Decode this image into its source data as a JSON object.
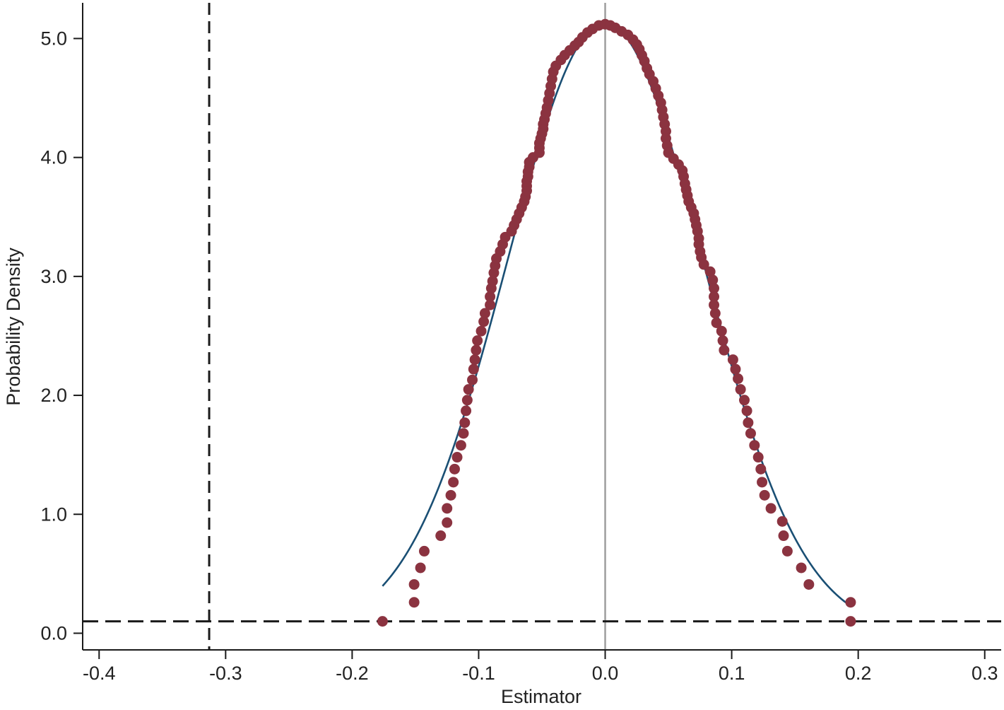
{
  "chart_data": {
    "type": "scatter",
    "xlabel": "Estimator",
    "ylabel": "Probability Density",
    "xlim": [
      -0.413,
      0.313
    ],
    "ylim": [
      -0.14,
      5.3
    ],
    "x_ticks": [
      -0.4,
      -0.3,
      -0.2,
      -0.1,
      0.0,
      0.1,
      0.2,
      0.3
    ],
    "x_tick_labels": [
      "-0.4",
      "-0.3",
      "-0.2",
      "-0.1",
      "0.0",
      "0.1",
      "0.2",
      "0.3"
    ],
    "y_ticks": [
      0,
      1,
      2,
      3,
      4,
      5
    ],
    "y_tick_labels": [
      "0.0",
      "1.0",
      "2.0",
      "3.0",
      "4.0",
      "5.0"
    ],
    "grid": false,
    "colors": {
      "points": "#8b3340",
      "curve": "#1a4f74",
      "zero_line": "#9e9e9e",
      "reference_lines": "#1a1a1a"
    },
    "reference_lines": {
      "vertical_dashed_x": -0.313,
      "horizontal_dashed_y": 0.1,
      "vertical_solid_x": 0.0
    },
    "normal_curve": {
      "mean": 0.0,
      "sd": 0.0778,
      "x_range": [
        -0.176,
        0.194
      ]
    },
    "series": [
      {
        "type": "scatter",
        "points": [
          [
            -0.176,
            0.1
          ],
          [
            -0.151,
            0.26
          ],
          [
            -0.151,
            0.41
          ],
          [
            -0.146,
            0.55
          ],
          [
            -0.143,
            0.69
          ],
          [
            -0.13,
            0.82
          ],
          [
            -0.125,
            0.93
          ],
          [
            -0.125,
            1.05
          ],
          [
            -0.122,
            1.16
          ],
          [
            -0.12,
            1.27
          ],
          [
            -0.119,
            1.38
          ],
          [
            -0.117,
            1.48
          ],
          [
            -0.114,
            1.58
          ],
          [
            -0.112,
            1.68
          ],
          [
            -0.111,
            1.77
          ],
          [
            -0.11,
            1.87
          ],
          [
            -0.109,
            1.96
          ],
          [
            -0.108,
            2.05
          ],
          [
            -0.105,
            2.13
          ],
          [
            -0.104,
            2.22
          ],
          [
            -0.103,
            2.3
          ],
          [
            -0.102,
            2.38
          ],
          [
            -0.101,
            2.46
          ],
          [
            -0.098,
            2.54
          ],
          [
            -0.096,
            2.62
          ],
          [
            -0.095,
            2.69
          ],
          [
            -0.091,
            2.76
          ],
          [
            -0.091,
            2.83
          ],
          [
            -0.09,
            2.9
          ],
          [
            -0.089,
            2.96
          ],
          [
            -0.088,
            3.03
          ],
          [
            -0.087,
            3.09
          ],
          [
            -0.086,
            3.15
          ],
          [
            -0.083,
            3.21
          ],
          [
            -0.081,
            3.27
          ],
          [
            -0.079,
            3.33
          ],
          [
            -0.074,
            3.38
          ],
          [
            -0.072,
            3.43
          ],
          [
            -0.07,
            3.48
          ],
          [
            -0.068,
            3.53
          ],
          [
            -0.066,
            3.58
          ],
          [
            -0.064,
            3.63
          ],
          [
            -0.063,
            3.67
          ],
          [
            -0.062,
            3.72
          ],
          [
            -0.062,
            3.76
          ],
          [
            -0.062,
            3.8
          ],
          [
            -0.061,
            3.84
          ],
          [
            -0.061,
            3.88
          ],
          [
            -0.06,
            3.92
          ],
          [
            -0.06,
            3.96
          ],
          [
            -0.057,
            4.0
          ],
          [
            -0.052,
            4.04
          ],
          [
            -0.052,
            4.08
          ],
          [
            -0.052,
            4.12
          ],
          [
            -0.051,
            4.16
          ],
          [
            -0.05,
            4.2
          ],
          [
            -0.049,
            4.24
          ],
          [
            -0.049,
            4.28
          ],
          [
            -0.048,
            4.32
          ],
          [
            -0.047,
            4.37
          ],
          [
            -0.046,
            4.42
          ],
          [
            -0.045,
            4.48
          ],
          [
            -0.044,
            4.54
          ],
          [
            -0.043,
            4.6
          ],
          [
            -0.042,
            4.66
          ],
          [
            -0.041,
            4.72
          ],
          [
            -0.039,
            4.77
          ],
          [
            -0.035,
            4.82
          ],
          [
            -0.032,
            4.86
          ],
          [
            -0.028,
            4.9
          ],
          [
            -0.024,
            4.94
          ],
          [
            -0.021,
            4.97
          ],
          [
            -0.018,
            5.01
          ],
          [
            -0.014,
            5.05
          ],
          [
            -0.01,
            5.08
          ],
          [
            -0.005,
            5.11
          ],
          [
            0.0,
            5.12
          ],
          [
            0.004,
            5.11
          ],
          [
            0.008,
            5.09
          ],
          [
            0.013,
            5.06
          ],
          [
            0.018,
            5.03
          ],
          [
            0.022,
            4.99
          ],
          [
            0.025,
            4.95
          ],
          [
            0.027,
            4.91
          ],
          [
            0.029,
            4.86
          ],
          [
            0.031,
            4.81
          ],
          [
            0.033,
            4.75
          ],
          [
            0.035,
            4.7
          ],
          [
            0.038,
            4.64
          ],
          [
            0.04,
            4.58
          ],
          [
            0.042,
            4.52
          ],
          [
            0.044,
            4.46
          ],
          [
            0.045,
            4.4
          ],
          [
            0.046,
            4.34
          ],
          [
            0.047,
            4.28
          ],
          [
            0.048,
            4.22
          ],
          [
            0.048,
            4.16
          ],
          [
            0.049,
            4.1
          ],
          [
            0.05,
            4.04
          ],
          [
            0.054,
            3.99
          ],
          [
            0.058,
            3.94
          ],
          [
            0.061,
            3.89
          ],
          [
            0.062,
            3.84
          ],
          [
            0.063,
            3.78
          ],
          [
            0.064,
            3.73
          ],
          [
            0.065,
            3.68
          ],
          [
            0.066,
            3.63
          ],
          [
            0.068,
            3.58
          ],
          [
            0.07,
            3.53
          ],
          [
            0.071,
            3.48
          ],
          [
            0.072,
            3.43
          ],
          [
            0.073,
            3.38
          ],
          [
            0.074,
            3.32
          ],
          [
            0.074,
            3.27
          ],
          [
            0.075,
            3.21
          ],
          [
            0.076,
            3.16
          ],
          [
            0.078,
            3.1
          ],
          [
            0.083,
            3.04
          ],
          [
            0.085,
            2.97
          ],
          [
            0.086,
            2.9
          ],
          [
            0.086,
            2.83
          ],
          [
            0.086,
            2.76
          ],
          [
            0.087,
            2.69
          ],
          [
            0.088,
            2.61
          ],
          [
            0.092,
            2.54
          ],
          [
            0.093,
            2.46
          ],
          [
            0.094,
            2.38
          ],
          [
            0.101,
            2.3
          ],
          [
            0.103,
            2.22
          ],
          [
            0.105,
            2.14
          ],
          [
            0.107,
            2.05
          ],
          [
            0.11,
            1.96
          ],
          [
            0.112,
            1.87
          ],
          [
            0.113,
            1.77
          ],
          [
            0.115,
            1.68
          ],
          [
            0.118,
            1.58
          ],
          [
            0.121,
            1.48
          ],
          [
            0.123,
            1.38
          ],
          [
            0.124,
            1.27
          ],
          [
            0.126,
            1.16
          ],
          [
            0.131,
            1.05
          ],
          [
            0.14,
            0.94
          ],
          [
            0.141,
            0.82
          ],
          [
            0.144,
            0.69
          ],
          [
            0.155,
            0.55
          ],
          [
            0.161,
            0.41
          ],
          [
            0.194,
            0.26
          ],
          [
            0.194,
            0.1
          ]
        ]
      }
    ]
  }
}
